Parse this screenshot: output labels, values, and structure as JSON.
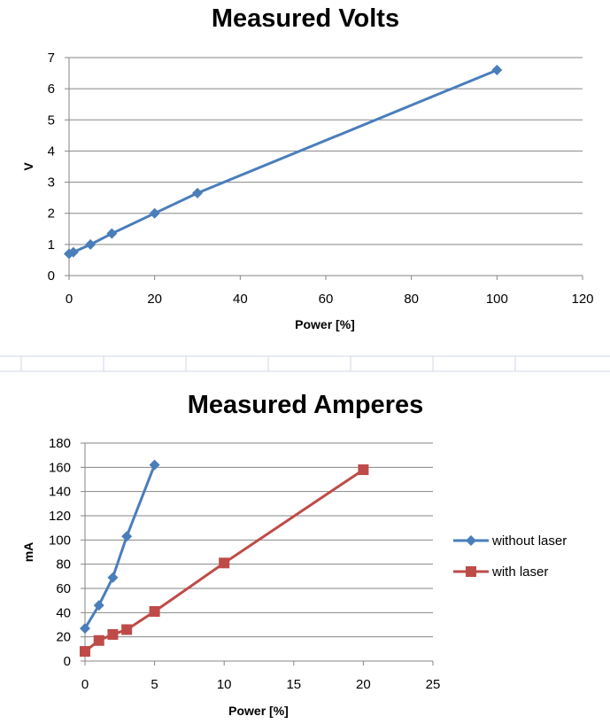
{
  "colors": {
    "series_blue": "#4a7ebb",
    "series_red": "#be4b48",
    "grid": "#868686",
    "axis": "#868686",
    "separator": "#d0d7e5"
  },
  "chart_data": [
    {
      "type": "scatter",
      "title": "Measured Volts",
      "xlabel": "Power [%]",
      "ylabel": "V",
      "xlim": [
        0,
        120
      ],
      "ylim": [
        0,
        7
      ],
      "xticks": [
        0,
        20,
        40,
        60,
        80,
        100,
        120
      ],
      "yticks": [
        0,
        1,
        2,
        3,
        4,
        5,
        6,
        7
      ],
      "grid": true,
      "legend": "none",
      "series": [
        {
          "marker": "diamond",
          "color": "#4a7ebb",
          "x": [
            0,
            1,
            5,
            10,
            20,
            30,
            100
          ],
          "y": [
            0.7,
            0.75,
            1.0,
            1.35,
            2.0,
            2.65,
            6.6
          ]
        }
      ]
    },
    {
      "type": "scatter",
      "title": "Measured Amperes",
      "xlabel": "Power [%]",
      "ylabel": "mA",
      "xlim": [
        0,
        25
      ],
      "ylim": [
        0,
        180
      ],
      "xticks": [
        0,
        5,
        10,
        15,
        20,
        25
      ],
      "yticks": [
        0,
        20,
        40,
        60,
        80,
        100,
        120,
        140,
        160,
        180
      ],
      "grid": true,
      "legend": "right",
      "series": [
        {
          "name": "without laser",
          "marker": "diamond",
          "color": "#4a7ebb",
          "x": [
            0,
            1,
            2,
            3,
            5
          ],
          "y": [
            27,
            46,
            69,
            103,
            162
          ]
        },
        {
          "name": "with laser",
          "marker": "square",
          "color": "#be4b48",
          "x": [
            0,
            1,
            2,
            3,
            5,
            10,
            20
          ],
          "y": [
            8,
            17,
            22,
            26,
            41,
            81,
            158
          ]
        }
      ]
    }
  ]
}
